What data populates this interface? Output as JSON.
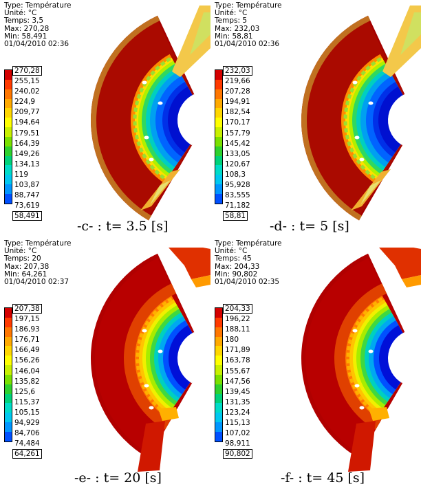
{
  "panels": [
    {
      "id": "c",
      "info": {
        "type": "Type: Température",
        "unit": "Unité: °C",
        "time": "Temps: 3,5",
        "max": "Max: 270,28",
        "min": "Min: 58,491",
        "date": "01/04/2010 02:36"
      },
      "legend": [
        "270,28",
        "255,15",
        "240,02",
        "224,9",
        "209,77",
        "194,64",
        "179,51",
        "164,39",
        "149,26",
        "134,13",
        "119",
        "103,87",
        "88,747",
        "73,619",
        "58,491"
      ],
      "caption": "-c- : t= 3.5 [s]",
      "variant": "early"
    },
    {
      "id": "d",
      "info": {
        "type": "Type: Température",
        "unit": "Unité: °C",
        "time": "Temps: 5",
        "max": "Max: 232,03",
        "min": "Min: 58,81",
        "date": "01/04/2010 02:36"
      },
      "legend": [
        "232,03",
        "219,66",
        "207,28",
        "194,91",
        "182,54",
        "170,17",
        "157,79",
        "145,42",
        "133,05",
        "120,67",
        "108,3",
        "95,928",
        "83,555",
        "71,182",
        "58,81"
      ],
      "caption": "-d- : t= 5 [s]",
      "variant": "early"
    },
    {
      "id": "e",
      "info": {
        "type": "Type: Température",
        "unit": "Unité: °C",
        "time": "Temps: 20",
        "max": "Max: 207,38",
        "min": "Min: 64,261",
        "date": "01/04/2010 02:37"
      },
      "legend": [
        "207,38",
        "197,15",
        "186,93",
        "176,71",
        "166,49",
        "156,26",
        "146,04",
        "135,82",
        "125,6",
        "115,37",
        "105,15",
        "94,929",
        "84,706",
        "74,484",
        "64,261"
      ],
      "caption": "-e- : t= 20 [s]",
      "variant": "late"
    },
    {
      "id": "f",
      "info": {
        "type": "Type: Température",
        "unit": "Unité: °C",
        "time": "Temps: 45",
        "max": "Max: 204,33",
        "min": "Min: 90,802",
        "date": "01/04/2010 02:35"
      },
      "legend": [
        "204,33",
        "196,22",
        "188,11",
        "180",
        "171,89",
        "163,78",
        "155,67",
        "147,56",
        "139,45",
        "131,35",
        "123,24",
        "115,13",
        "107,02",
        "98,911",
        "90,802"
      ],
      "caption": "-f- : t= 45 [s]",
      "variant": "late"
    }
  ],
  "colors": {
    "scale": [
      "#d40000",
      "#ff3a00",
      "#ff7700",
      "#ffaa00",
      "#ffd700",
      "#ffff00",
      "#c8f000",
      "#7ae000",
      "#2ed12e",
      "#00d27a",
      "#00dcc8",
      "#00c8f0",
      "#0096ff",
      "#0050ff",
      "#0000e6"
    ],
    "hot": "#a80000"
  }
}
